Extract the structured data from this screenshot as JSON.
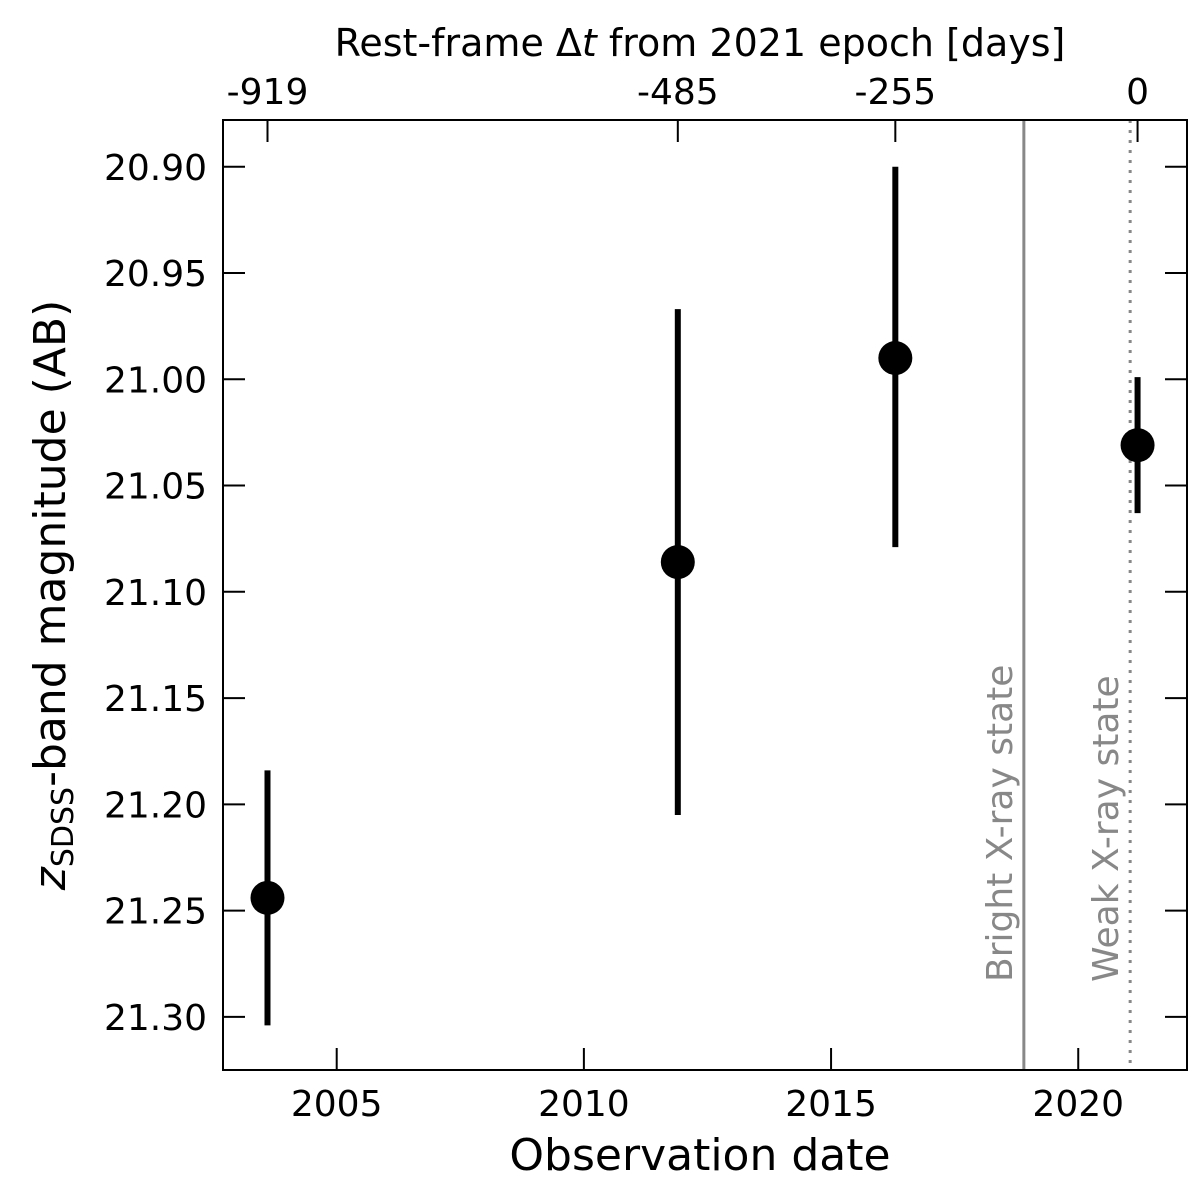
{
  "chart_data": {
    "type": "scatter",
    "xlabel": "Observation date",
    "ylabel_main": "z",
    "ylabel_sub": "SDSS",
    "ylabel_rest": "-band magnitude (AB)",
    "top_label_pre": "Rest-frame Δ",
    "top_label_var": "t",
    "top_label_post": " from 2021 epoch [days]",
    "xlim": [
      2002.7,
      2022.2
    ],
    "ylim": [
      21.325,
      20.878
    ],
    "y_inverted": true,
    "x_ticks": [
      {
        "value": 2005,
        "label": "2005"
      },
      {
        "value": 2010,
        "label": "2010"
      },
      {
        "value": 2015,
        "label": "2015"
      },
      {
        "value": 2020,
        "label": "2020"
      }
    ],
    "y_ticks": [
      {
        "value": 20.9,
        "label": "20.90"
      },
      {
        "value": 20.95,
        "label": "20.95"
      },
      {
        "value": 21.0,
        "label": "21.00"
      },
      {
        "value": 21.05,
        "label": "21.05"
      },
      {
        "value": 21.1,
        "label": "21.10"
      },
      {
        "value": 21.15,
        "label": "21.15"
      },
      {
        "value": 21.2,
        "label": "21.20"
      },
      {
        "value": 21.25,
        "label": "21.25"
      },
      {
        "value": 21.3,
        "label": "21.30"
      }
    ],
    "top_ticks": [
      {
        "value": 2003.6,
        "label": "-919"
      },
      {
        "value": 2011.9,
        "label": "-485"
      },
      {
        "value": 2016.3,
        "label": "-255"
      },
      {
        "value": 2021.2,
        "label": "0"
      }
    ],
    "points": [
      {
        "x": 2003.6,
        "y": 21.244,
        "err_low": 21.184,
        "err_high": 21.304
      },
      {
        "x": 2011.9,
        "y": 21.086,
        "err_low": 20.967,
        "err_high": 21.205
      },
      {
        "x": 2016.3,
        "y": 20.99,
        "err_low": 20.9,
        "err_high": 21.079
      },
      {
        "x": 2021.2,
        "y": 21.031,
        "err_low": 20.999,
        "err_high": 21.063
      }
    ],
    "vlines": [
      {
        "x": 2018.9,
        "label": "Bright X-ray state",
        "style": "solid",
        "color": "#888888"
      },
      {
        "x": 2021.05,
        "label": "Weak X-ray state",
        "style": "dotted",
        "color": "#888888"
      }
    ],
    "marker_color": "#000000",
    "grid": false
  }
}
